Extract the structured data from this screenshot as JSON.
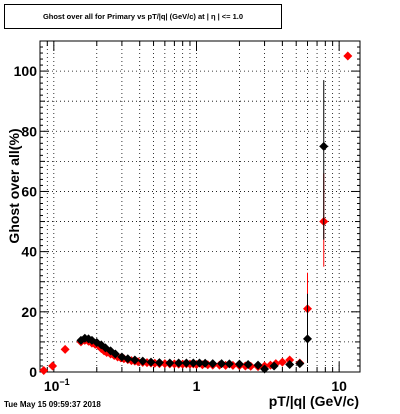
{
  "title": "Ghost over all for Primary vs pT/|q| (GeV/c) at | η | <= 1.0",
  "timestamp": "Tue May 15 09:59:37 2018",
  "colors": {
    "series_red": "#ff0000",
    "series_black": "#000000"
  },
  "chart_data": {
    "type": "scatter",
    "xlabel": "pT/|q| (GeV/c)",
    "ylabel": "Ghost over all(%)",
    "xscale": "log",
    "xlim": [
      0.08,
      14.0
    ],
    "ylim": [
      0,
      110
    ],
    "grid": true,
    "x_tick_labels": [
      {
        "value": 0.1,
        "base": "10",
        "exp": "−1"
      },
      {
        "value": 1,
        "label": "1"
      },
      {
        "value": 10,
        "label": "10"
      }
    ],
    "y_tick_labels": [
      "0",
      "20",
      "40",
      "60",
      "80",
      "100"
    ],
    "series": [
      {
        "color": "red",
        "marker": "diamond",
        "points": [
          [
            0.085,
            0.5
          ],
          [
            0.098,
            2.0
          ],
          [
            0.12,
            7.5
          ],
          [
            0.155,
            10.0
          ],
          [
            0.165,
            10.5
          ],
          [
            0.175,
            10.2
          ],
          [
            0.185,
            9.6
          ],
          [
            0.195,
            9.2
          ],
          [
            0.205,
            8.8
          ],
          [
            0.215,
            7.8
          ],
          [
            0.225,
            7.0
          ],
          [
            0.235,
            6.5
          ],
          [
            0.25,
            6.0
          ],
          [
            0.265,
            5.5
          ],
          [
            0.28,
            5.0
          ],
          [
            0.295,
            4.7
          ],
          [
            0.31,
            4.4
          ],
          [
            0.33,
            4.1
          ],
          [
            0.35,
            3.8
          ],
          [
            0.37,
            3.6
          ],
          [
            0.39,
            3.4
          ],
          [
            0.42,
            3.2
          ],
          [
            0.45,
            3.1
          ],
          [
            0.48,
            3.0
          ],
          [
            0.51,
            2.9
          ],
          [
            0.55,
            2.8
          ],
          [
            0.6,
            2.8
          ],
          [
            0.65,
            2.7
          ],
          [
            0.7,
            2.7
          ],
          [
            0.75,
            2.6
          ],
          [
            0.8,
            2.6
          ],
          [
            0.85,
            2.7
          ],
          [
            0.9,
            2.6
          ],
          [
            0.95,
            2.7
          ],
          [
            1.0,
            2.5
          ],
          [
            1.1,
            2.4
          ],
          [
            1.2,
            2.4
          ],
          [
            1.3,
            2.3
          ],
          [
            1.45,
            2.3
          ],
          [
            1.6,
            2.2
          ],
          [
            1.8,
            2.2
          ],
          [
            2.0,
            2.1
          ],
          [
            2.2,
            2.0
          ],
          [
            2.4,
            1.9
          ],
          [
            2.7,
            1.8
          ],
          [
            3.0,
            2.0
          ],
          [
            3.3,
            2.3
          ],
          [
            3.6,
            2.8
          ],
          [
            4.0,
            3.3
          ],
          [
            4.5,
            4.0
          ],
          [
            5.3,
            3.0
          ],
          [
            6.0,
            21.0
          ],
          [
            7.8,
            50.0
          ],
          [
            11.5,
            105.0
          ]
        ],
        "errors": [
          {
            "x": 6.0,
            "low": 9.0,
            "high": 33.0,
            "xlow": 5.7,
            "xhigh": 6.4
          },
          {
            "x": 7.8,
            "low": 35.0,
            "high": 66.0,
            "xlow": 7.3,
            "xhigh": 8.4
          }
        ]
      },
      {
        "color": "black",
        "marker": "diamond",
        "points": [
          [
            0.155,
            10.5
          ],
          [
            0.165,
            11.2
          ],
          [
            0.175,
            11.0
          ],
          [
            0.185,
            10.5
          ],
          [
            0.2,
            9.8
          ],
          [
            0.215,
            9.0
          ],
          [
            0.23,
            8.0
          ],
          [
            0.25,
            7.0
          ],
          [
            0.27,
            6.0
          ],
          [
            0.3,
            5.0
          ],
          [
            0.33,
            4.4
          ],
          [
            0.37,
            4.0
          ],
          [
            0.42,
            3.6
          ],
          [
            0.48,
            3.3
          ],
          [
            0.55,
            3.1
          ],
          [
            0.65,
            3.0
          ],
          [
            0.75,
            3.0
          ],
          [
            0.85,
            3.0
          ],
          [
            0.95,
            3.0
          ],
          [
            1.05,
            3.0
          ],
          [
            1.15,
            2.9
          ],
          [
            1.3,
            2.8
          ],
          [
            1.5,
            2.8
          ],
          [
            1.7,
            2.7
          ],
          [
            2.0,
            2.6
          ],
          [
            2.3,
            2.5
          ],
          [
            2.7,
            2.3
          ],
          [
            3.0,
            1.0
          ],
          [
            3.5,
            2.0
          ],
          [
            4.5,
            2.5
          ],
          [
            5.3,
            2.8
          ],
          [
            6.0,
            11.0
          ],
          [
            7.8,
            75.0
          ]
        ],
        "errors": [
          {
            "x": 6.0,
            "low": 3.0,
            "high": 26.0,
            "xlow": 5.7,
            "xhigh": 6.4
          },
          {
            "x": 7.8,
            "low": 44.0,
            "high": 97.0,
            "xlow": 7.3,
            "xhigh": 8.4
          }
        ]
      }
    ]
  }
}
